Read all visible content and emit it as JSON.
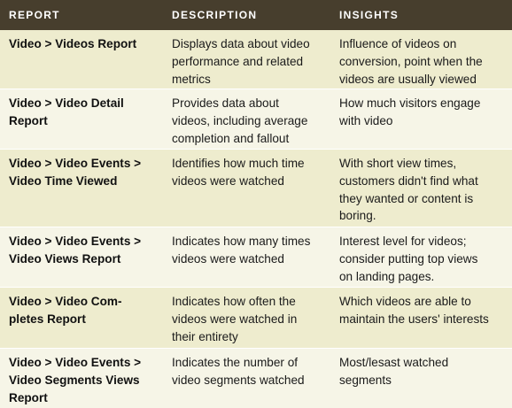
{
  "header": {
    "report": "REPORT",
    "description": "DESCRIPTION",
    "insights": "INSIGHTS"
  },
  "rows": [
    {
      "report": [
        "Video > Videos Report"
      ],
      "description": [
        "Displays data about video",
        "performance and related",
        "metrics"
      ],
      "insights": [
        "Influence of videos on",
        "conversion, point when the",
        "videos are usually viewed"
      ]
    },
    {
      "report": [
        "Video > Video Detail",
        "Report"
      ],
      "description": [
        "Provides data about",
        "videos, including average",
        "completion and fallout"
      ],
      "insights": [
        "How much visitors engage",
        "with video"
      ]
    },
    {
      "report": [
        "Video > Video Events >",
        "Video Time Viewed"
      ],
      "description": [
        "Identifies how much time",
        "videos were watched"
      ],
      "insights": [
        "With short view times,",
        "customers didn't find what",
        "they wanted or content is",
        "boring."
      ]
    },
    {
      "report": [
        "Video > Video Events >",
        "Video Views Report"
      ],
      "description": [
        "Indicates how many times",
        "videos were watched"
      ],
      "insights": [
        "Interest level for videos;",
        "consider putting top views",
        "on landing pages."
      ]
    },
    {
      "report": [
        "Video > Video Com-",
        "pletes Report"
      ],
      "description": [
        "Indicates how often the",
        "videos were watched in",
        "their entirety"
      ],
      "insights": [
        "Which videos are able to",
        "maintain the users' interests"
      ]
    },
    {
      "report": [
        "Video > Video Events >",
        "Video Segments Views",
        "Report"
      ],
      "description": [
        "Indicates the number of",
        "video segments watched"
      ],
      "insights": [
        "Most/lesast watched",
        "segments"
      ]
    }
  ]
}
